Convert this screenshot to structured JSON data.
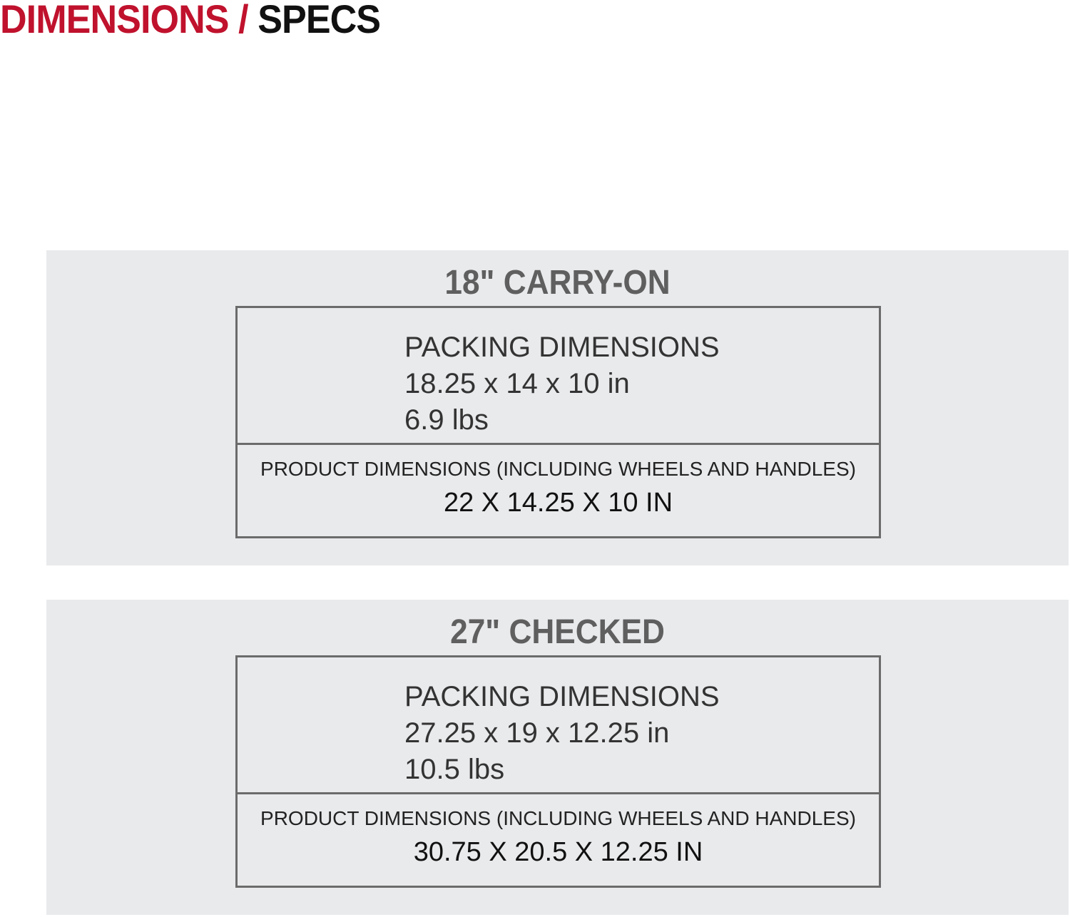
{
  "header": {
    "title_part1": "DIMENSIONS /",
    "title_part2": "SPECS",
    "accent_color": "#c0122d"
  },
  "products": [
    {
      "name": "18\" CARRY-ON",
      "packing_label": "PACKING DIMENSIONS",
      "packing_size": "18.25 x 14 x 10 in",
      "packing_weight": "6.9 lbs",
      "product_label": "PRODUCT DIMENSIONS (INCLUDING WHEELS AND HANDLES)",
      "product_size": "22 X 14.25 X 10 IN"
    },
    {
      "name": "27\" CHECKED",
      "packing_label": "PACKING DIMENSIONS",
      "packing_size": "27.25 x 19 x 12.25 in",
      "packing_weight": "10.5 lbs",
      "product_label": "PRODUCT DIMENSIONS (INCLUDING WHEELS AND HANDLES)",
      "product_size": "30.75 X 20.5 X 12.25 IN"
    }
  ]
}
